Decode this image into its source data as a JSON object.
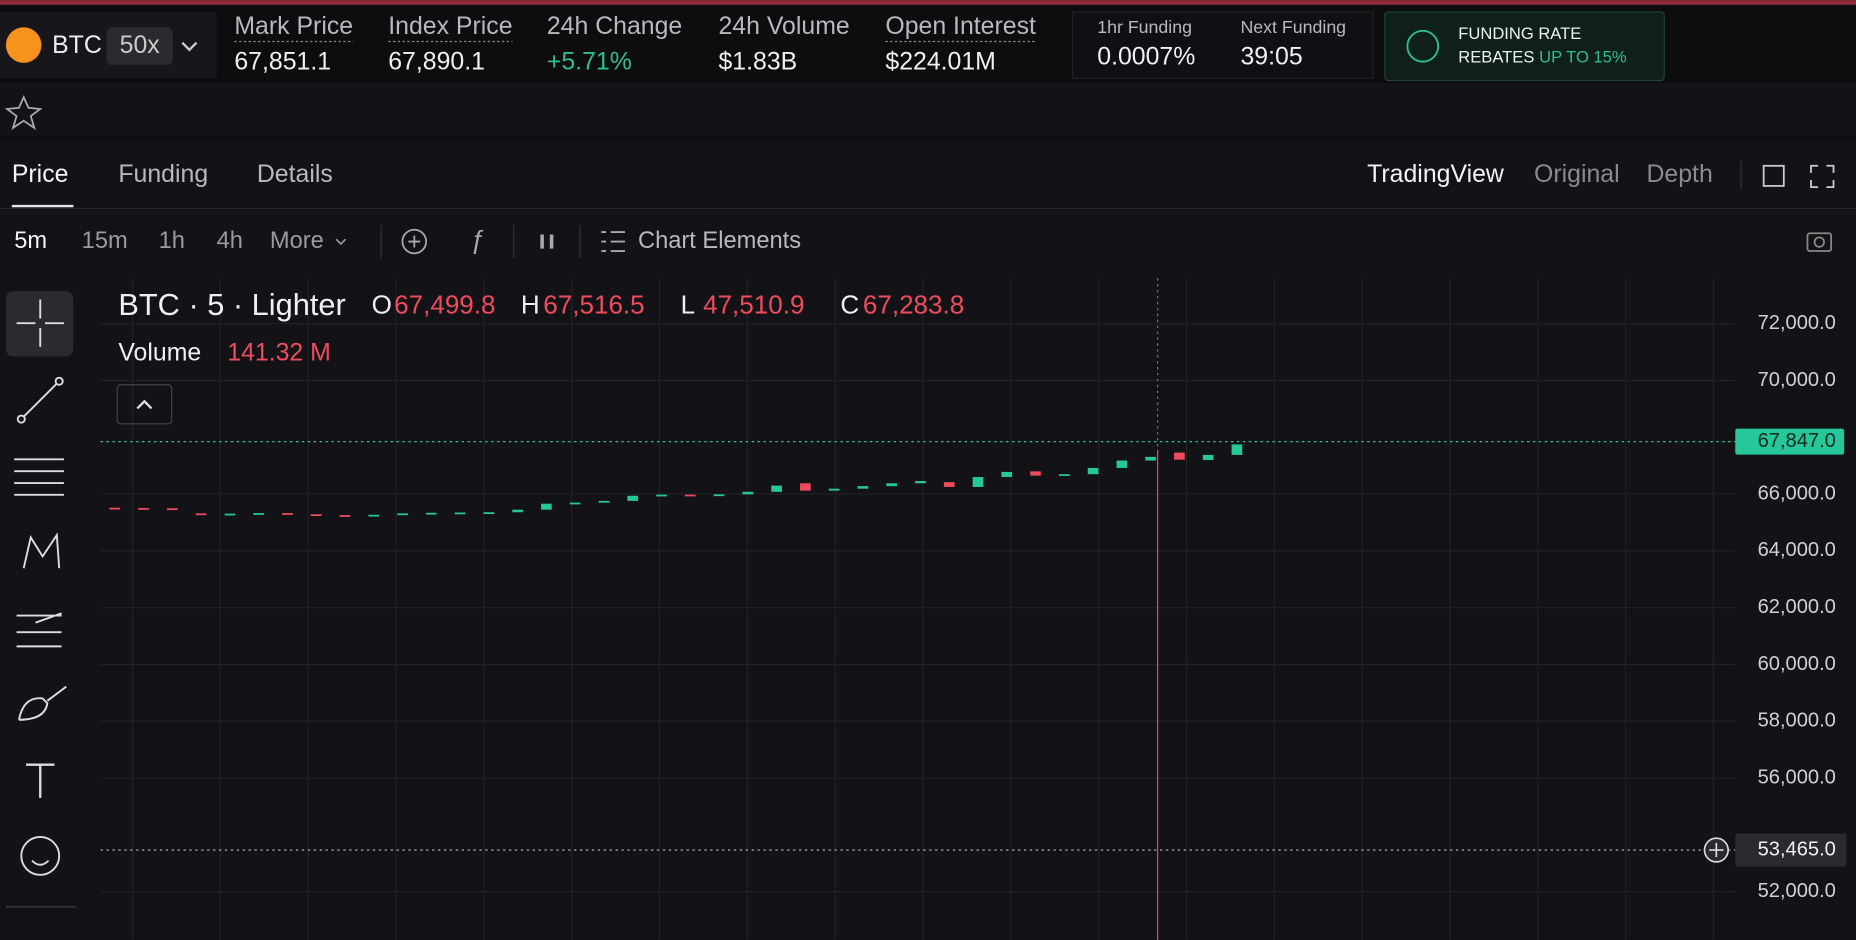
{
  "header": {
    "coin": "BTC",
    "leverage": "50x",
    "stats": [
      {
        "label": "Mark Price",
        "value": "67,851.1"
      },
      {
        "label": "Index Price",
        "value": "67,890.1"
      },
      {
        "label": "24h Change",
        "value": "+5.71%"
      },
      {
        "label": "24h Volume",
        "value": "$1.83B"
      },
      {
        "label": "Open Interest",
        "value": "$224.01M"
      }
    ],
    "funding": {
      "label": "1hr Funding",
      "value": "0.0007%"
    },
    "next_funding": {
      "label": "Next Funding",
      "value": "39:05"
    },
    "promo": {
      "line1": "FUNDING RATE",
      "line2": "REBATES",
      "highlight": "UP TO 15%"
    }
  },
  "tabs": [
    "Price",
    "Funding",
    "Details"
  ],
  "view_tabs": [
    "TradingView",
    "Original",
    "Depth"
  ],
  "intervals": [
    "5m",
    "15m",
    "1h",
    "4h",
    "More"
  ],
  "chart_elements": "Chart Elements",
  "legend": {
    "symbol": "BTC · 5 · Lighter",
    "ohlc": [
      {
        "key": "O",
        "value": "67,499.8"
      },
      {
        "key": "H",
        "value": "67,516.5"
      },
      {
        "key": "L",
        "value": "47,510.9"
      },
      {
        "key": "C",
        "value": "67,283.8"
      }
    ],
    "volume_label": "Volume",
    "volume_value": "141.32 M"
  },
  "chart": {
    "type": "candlestick",
    "up_color": "#26c79a",
    "down_color": "#ef4b5c",
    "opens": [
      65520,
      65510,
      65500,
      65320,
      65300,
      65310,
      65330,
      65290,
      65260,
      65220,
      65270,
      65320,
      65340,
      65350,
      65360,
      65450,
      65660,
      65700,
      65760,
      65940,
      65980,
      65960,
      65990,
      66080,
      66380,
      66120,
      66190,
      66280,
      66380,
      66420,
      66250,
      66600,
      66800,
      66650,
      66700,
      66920,
      67180,
      67460,
      67200,
      67380
    ],
    "closes": [
      65510,
      65500,
      65480,
      65300,
      65310,
      65330,
      65290,
      65260,
      65220,
      65270,
      65320,
      65340,
      65350,
      65360,
      65450,
      65660,
      65700,
      65760,
      65940,
      65980,
      65960,
      65990,
      66080,
      66300,
      66120,
      66190,
      66280,
      66380,
      66460,
      66250,
      66600,
      66780,
      66650,
      66700,
      66920,
      67180,
      67310,
      67210,
      67380,
      67750
    ],
    "ylim": [
      50300,
      73600
    ],
    "yticks": [
      {
        "value": 52000,
        "label": "52,000.0"
      },
      {
        "value": 56000,
        "label": "56,000.0"
      },
      {
        "value": 58000,
        "label": "58,000.0"
      },
      {
        "value": 60000,
        "label": "60,000.0"
      },
      {
        "value": 62000,
        "label": "62,000.0"
      },
      {
        "value": 64000,
        "label": "64,000.0"
      },
      {
        "value": 66000,
        "label": "66,000.0"
      },
      {
        "value": 70000,
        "label": "70,000.0"
      },
      {
        "value": 72000,
        "label": "72,000.0"
      }
    ],
    "last_price": {
      "value": 67847,
      "label": "67,847.0"
    },
    "crosshair_price": {
      "value": 53465,
      "label": "53,465.0"
    }
  }
}
